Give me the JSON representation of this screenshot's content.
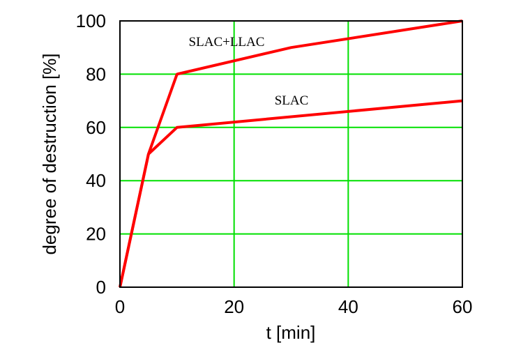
{
  "chart_data": {
    "type": "line",
    "title": "",
    "xlabel": "t [min]",
    "ylabel": "degree of destruction [%]",
    "xlim": [
      0,
      60
    ],
    "ylim": [
      0,
      100
    ],
    "xticks": [
      "0",
      "20",
      "40",
      "60"
    ],
    "yticks": [
      "0",
      "20",
      "40",
      "60",
      "80",
      "100"
    ],
    "grid": true,
    "grid_color": "#00e000",
    "series_color": "#ff0000",
    "series": [
      {
        "name": "SLAC+LLAC",
        "x": [
          0,
          5,
          10,
          30,
          60
        ],
        "y": [
          0,
          50,
          80,
          90,
          100
        ]
      },
      {
        "name": "SLAC",
        "x": [
          0,
          5,
          10,
          60
        ],
        "y": [
          0,
          50,
          60,
          70
        ]
      }
    ]
  }
}
